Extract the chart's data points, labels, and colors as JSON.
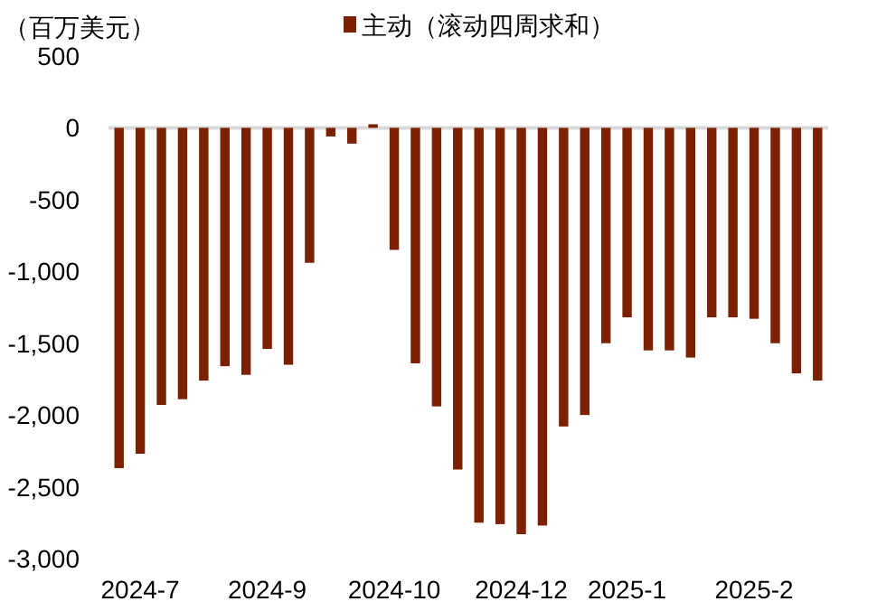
{
  "chart_data": {
    "type": "bar",
    "ylabel": "（百万美元）",
    "legend": "top",
    "categories": [
      null,
      "2024-7",
      null,
      null,
      null,
      null,
      null,
      "2024-9",
      null,
      null,
      null,
      null,
      null,
      "2024-10",
      null,
      null,
      null,
      null,
      null,
      "2024-12",
      null,
      null,
      null,
      null,
      "2025-1",
      null,
      null,
      null,
      null,
      null,
      "2025-2",
      null,
      null,
      null
    ],
    "series": [
      {
        "name": "主动（滚动四周求和）",
        "color": "#7b2100",
        "values": [
          -2370,
          -2270,
          -1930,
          -1890,
          -1760,
          -1660,
          -1720,
          -1540,
          -1650,
          -940,
          -60,
          -110,
          25,
          -850,
          -1640,
          -1940,
          -2380,
          -2750,
          -2760,
          -2830,
          -2770,
          -2080,
          -2000,
          -1500,
          -1320,
          -1550,
          -1550,
          -1600,
          -1320,
          -1320,
          -1330,
          -1500,
          -1710,
          -1760
        ]
      }
    ],
    "ylim": [
      -3000,
      500
    ],
    "yticks": [
      {
        "value": 500,
        "label": "500"
      },
      {
        "value": 0,
        "label": "0"
      },
      {
        "value": -500,
        "label": "-500"
      },
      {
        "value": -1000,
        "label": "-1,000"
      },
      {
        "value": -1500,
        "label": "-1,500"
      },
      {
        "value": -2000,
        "label": "-2,000"
      },
      {
        "value": -2500,
        "label": "-2,500"
      },
      {
        "value": -3000,
        "label": "-3,000"
      }
    ]
  }
}
